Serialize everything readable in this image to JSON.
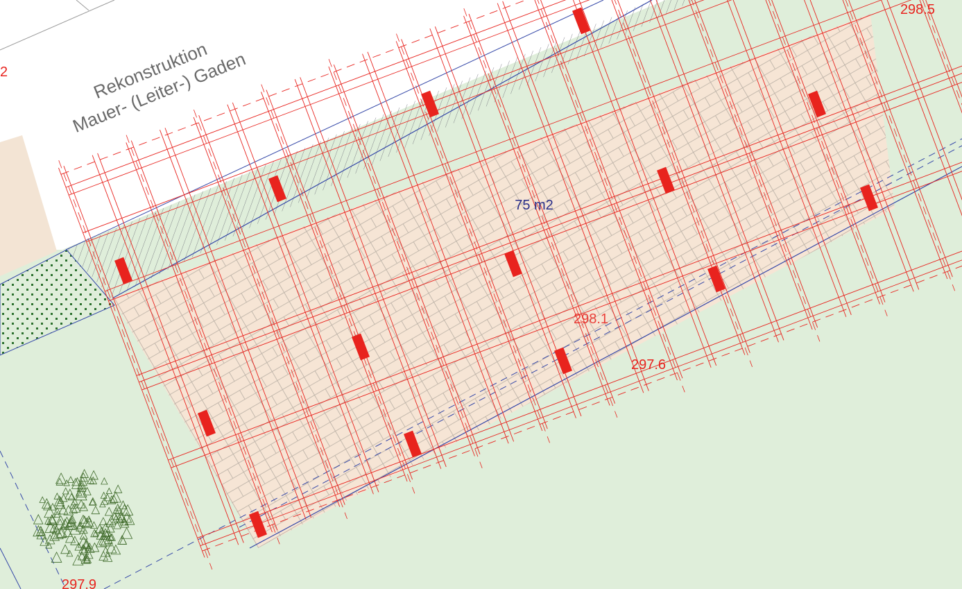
{
  "plan": {
    "title_line1": "Rekonstruktion",
    "title_line2": "Mauer- (Leiter-) Gaden",
    "area_label": "75 m2",
    "elevations": {
      "top_right": "298.5",
      "center": "298.1",
      "lower_edge": "297.6",
      "bottom_left": "297.9",
      "left_edge_partial": "2"
    }
  },
  "colors": {
    "lawn": "#dfeeda",
    "floor": "#f6e5d5",
    "timber": "#e8231e",
    "boundary": "#3548a8",
    "tree": "#3f6a2a",
    "hedge": "#2b6f2d",
    "annotation": "#2a2f8a"
  },
  "icons": {
    "tree": "tree-symbol-icon",
    "hedge": "hedge-hatch-icon"
  }
}
